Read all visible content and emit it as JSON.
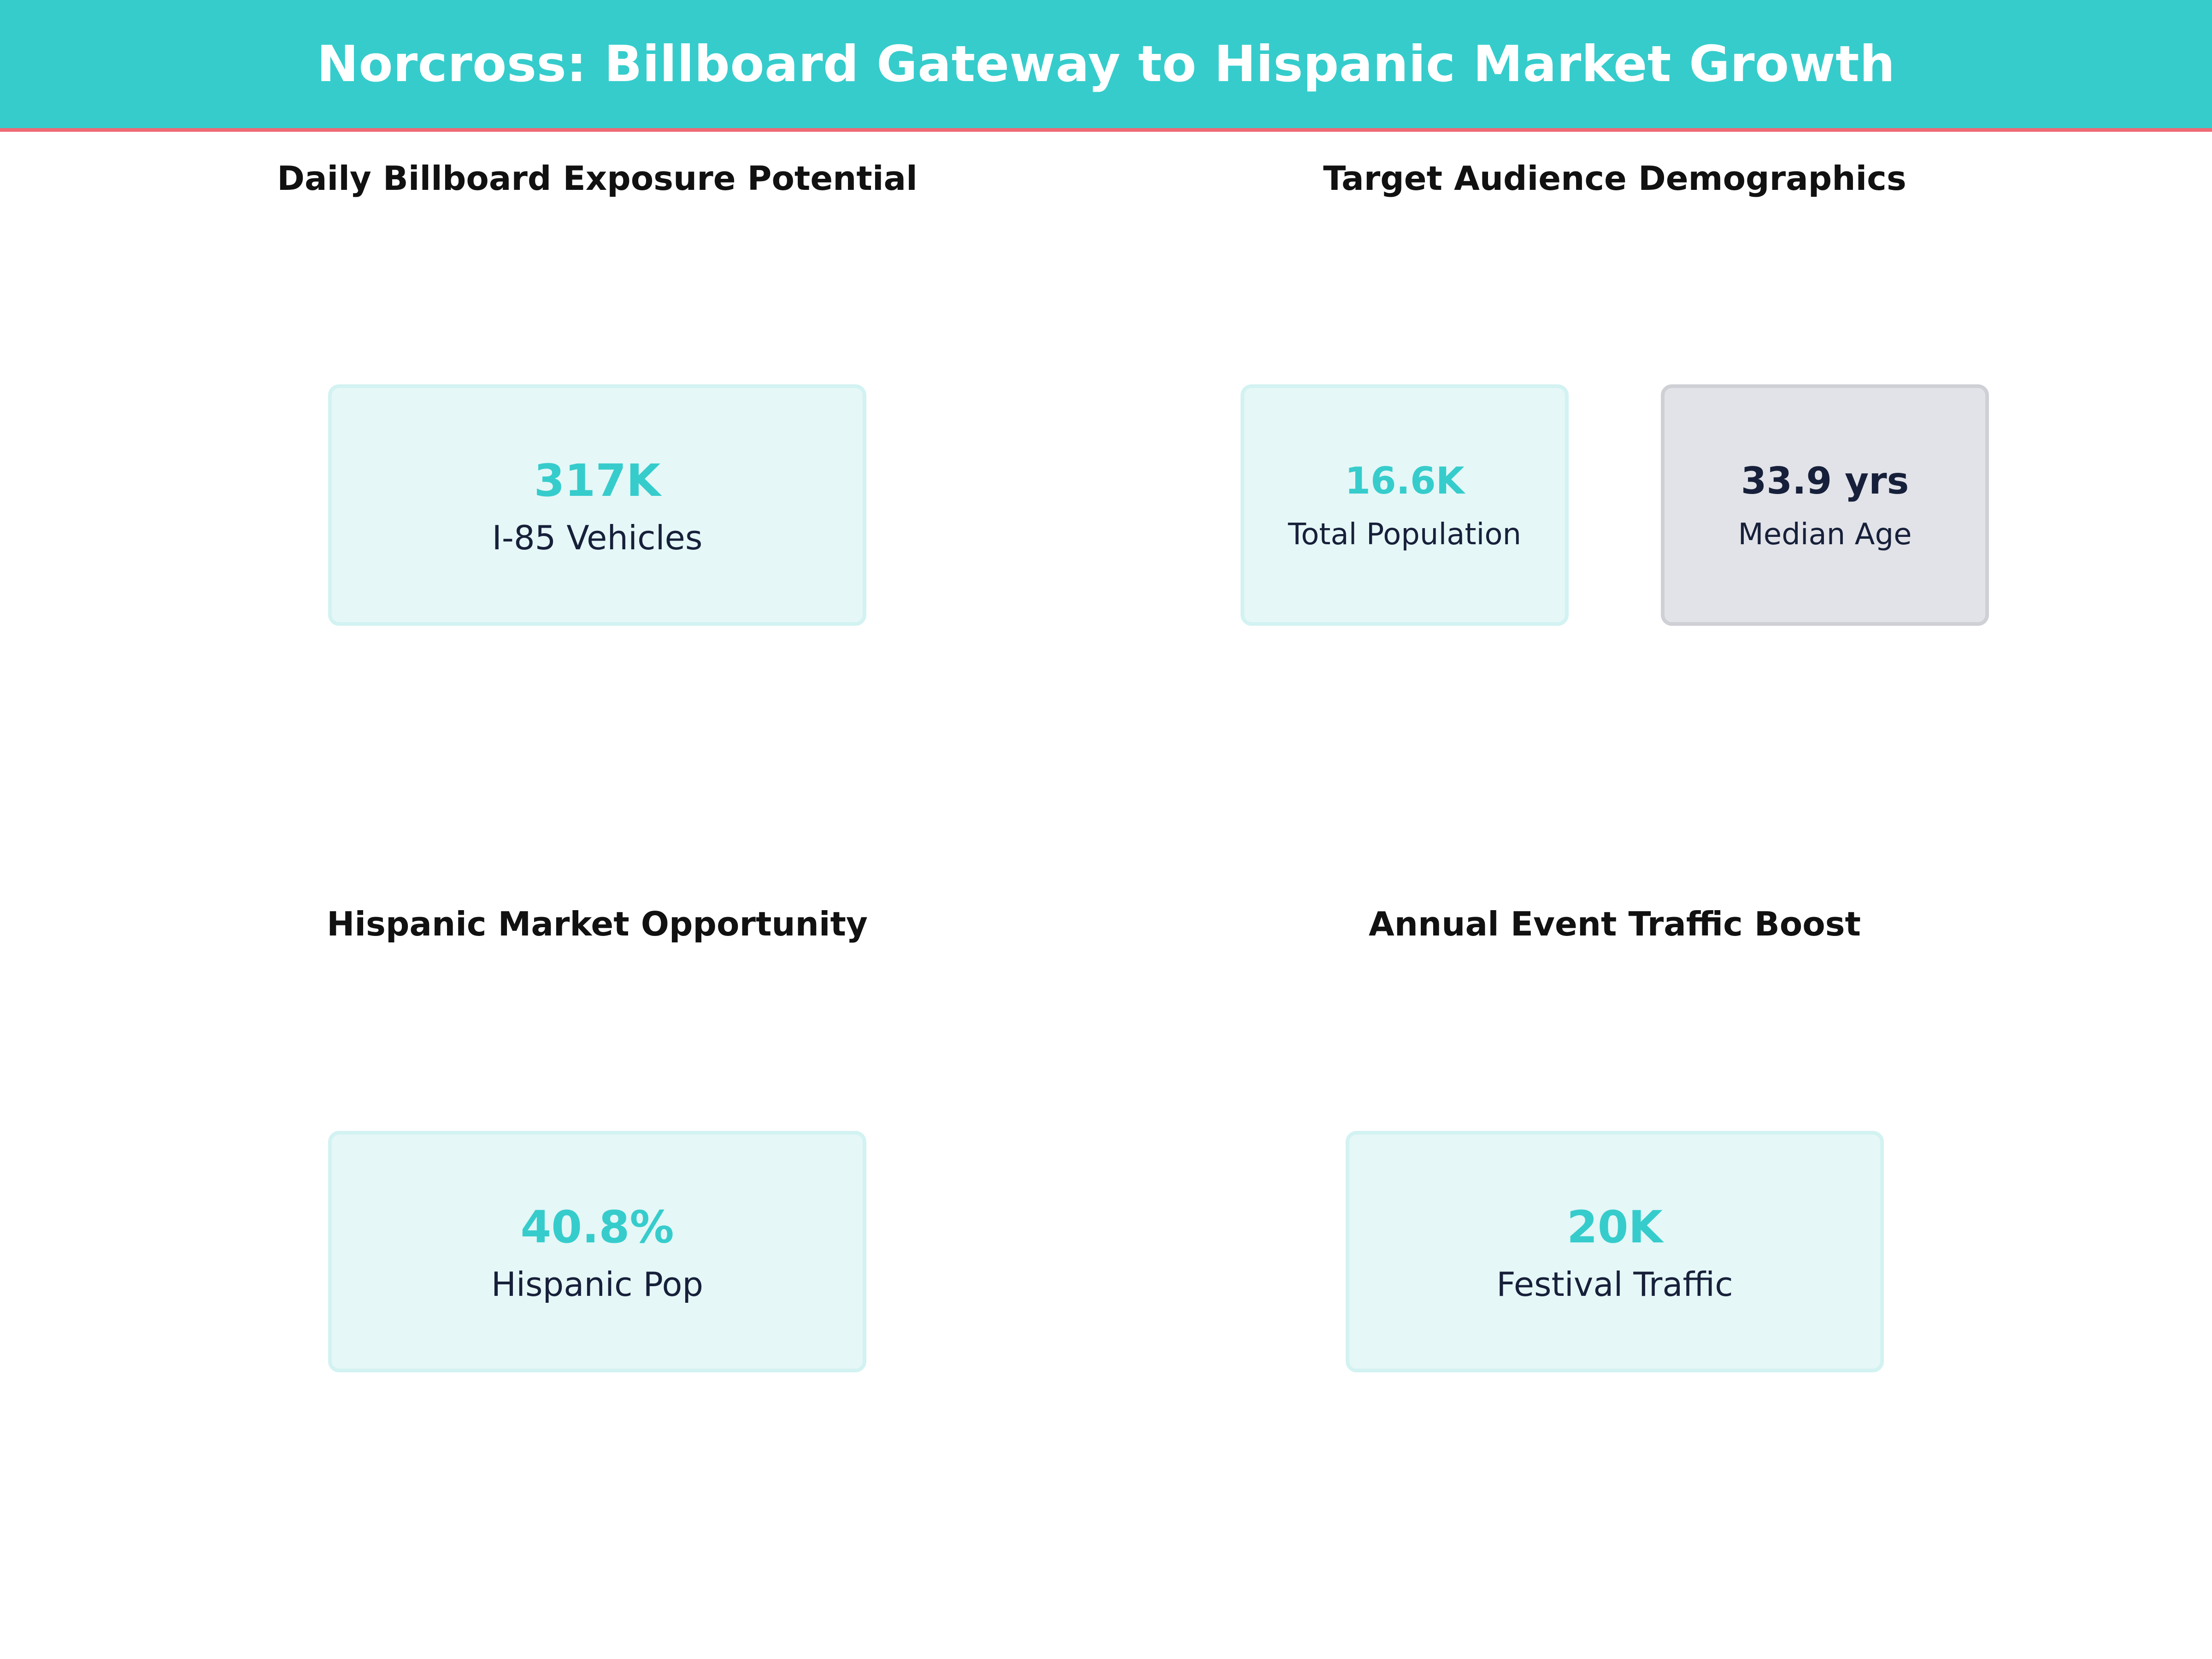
{
  "header": {
    "title": "Norcross: Billboard Gateway to Hispanic Market Growth",
    "background_color": "#36cccc",
    "rule_color": "#ee6b77"
  },
  "chart_data": [
    {
      "type": "table",
      "title": "Daily Billboard Exposure Potential",
      "metrics": [
        {
          "value": "317K",
          "label": "I-85 Vehicles",
          "color": "#36cccc"
        }
      ]
    },
    {
      "type": "table",
      "title": "Target Audience Demographics",
      "metrics": [
        {
          "value": "16.6K",
          "label": "Total Population",
          "color": "#36cccc"
        },
        {
          "value": "33.9 yrs",
          "label": "Median Age",
          "color": "#17203a"
        }
      ]
    },
    {
      "type": "table",
      "title": "Hispanic Market Opportunity",
      "metrics": [
        {
          "value": "40.8%",
          "label": "Hispanic Pop",
          "color": "#36cccc"
        }
      ]
    },
    {
      "type": "table",
      "title": "Annual Event Traffic Boost",
      "metrics": [
        {
          "value": "20K",
          "label": "Festival Traffic",
          "color": "#36cccc"
        }
      ]
    }
  ]
}
